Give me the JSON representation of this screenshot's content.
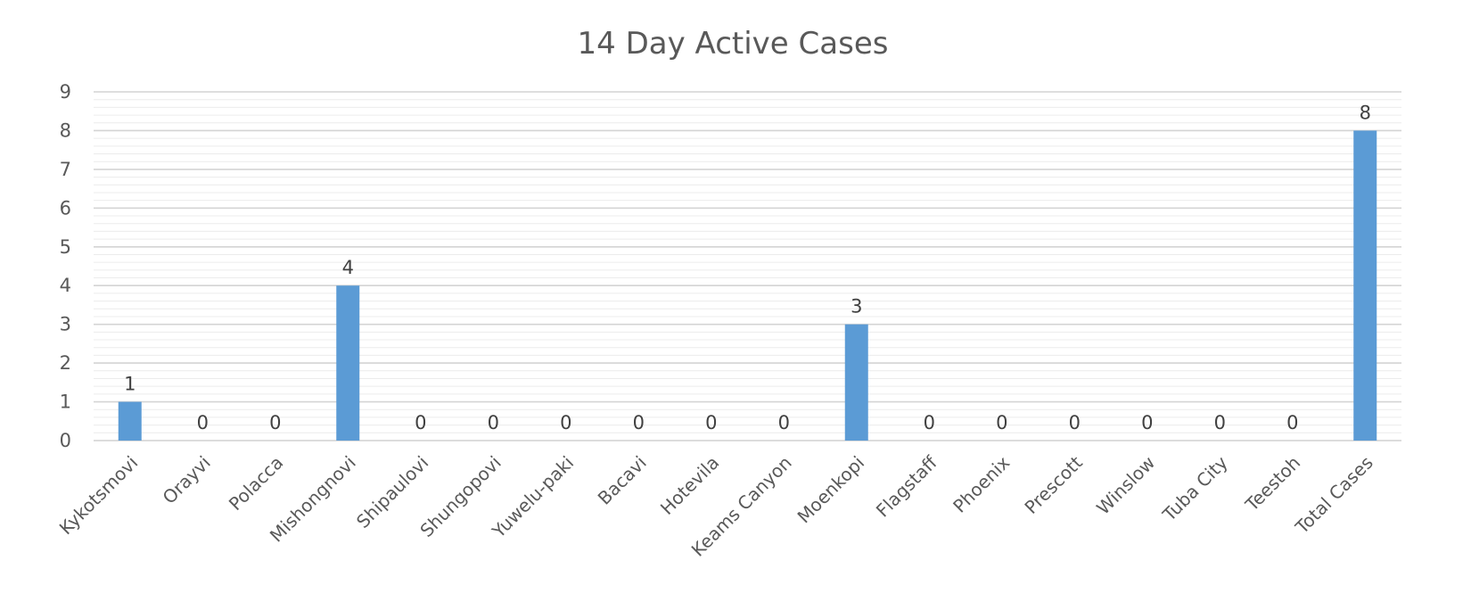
{
  "chart_data": {
    "type": "bar",
    "title": "14 Day Active Cases",
    "categories": [
      "Kykotsmovi",
      "Orayvi",
      "Polacca",
      "Mishongnovi",
      "Shipaulovi",
      "Shungopovi",
      "Yuwelu-paki",
      "Bacavi",
      "Hotevila",
      "Keams Canyon",
      "Moenkopi",
      "Flagstaff",
      "Phoenix",
      "Prescott",
      "Winslow",
      "Tuba City",
      "Teestoh",
      "Total Cases"
    ],
    "values": [
      1,
      0,
      0,
      4,
      0,
      0,
      0,
      0,
      0,
      0,
      3,
      0,
      0,
      0,
      0,
      0,
      0,
      8
    ],
    "ylim": [
      0,
      9
    ],
    "yticks": [
      0,
      1,
      2,
      3,
      4,
      5,
      6,
      7,
      8,
      9
    ],
    "xlabel": "",
    "ylabel": "",
    "data_labels": true,
    "grid": true,
    "minor_grid": true,
    "legend": "none",
    "bar_color": "#5b9bd5"
  }
}
